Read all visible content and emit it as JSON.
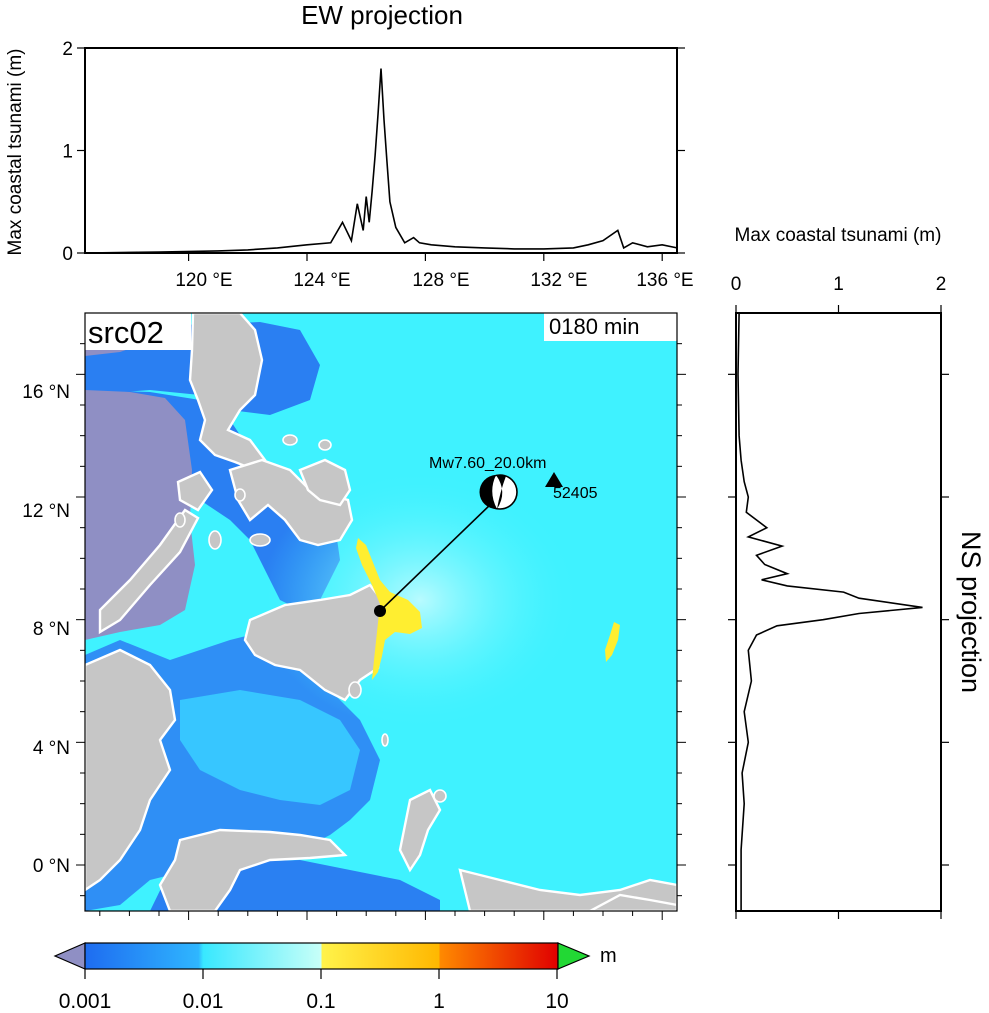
{
  "ew_panel": {
    "title": "EW projection",
    "ylabel": "Max coastal tsunami (m)",
    "x_ticks": [
      "120 °E",
      "124 °E",
      "128 °E",
      "132 °E",
      "136 °E"
    ]
  },
  "ns_panel": {
    "title": "NS projection",
    "xlabel": "Max coastal tsunami (m)"
  },
  "map": {
    "source_label": "src02",
    "time_label": "0180 min",
    "event_label": "Mw7.60_20.0km",
    "station_label": "52405",
    "y_ticks": [
      "16 °N",
      "12 °N",
      "8 °N",
      "4 °N",
      "0 °N"
    ]
  },
  "colorbar": {
    "unit": "m",
    "tick_labels": [
      "0.001",
      "0.01",
      "0.1",
      "1",
      "10"
    ],
    "colors": [
      "#1e6cf0",
      "#2fb6ff",
      "#3ff7ff",
      "#c8fff8",
      "#fff34a",
      "#ffb700",
      "#ff5a00",
      "#e00000"
    ],
    "under_color": "#8f8fc4",
    "over_color": "#22d834"
  },
  "colors": {
    "land": "#c6c6c6",
    "land_outline": "#ffffff",
    "mask": "#8f8fc4",
    "sea_deep": "#2a7ff2",
    "sea_mid": "#37d4ff",
    "sea_main": "#3ff2ff",
    "sea_light": "#7ff8ff",
    "high": "#ffee30"
  },
  "chart_data": [
    {
      "type": "line",
      "title": "EW projection",
      "xlabel": "",
      "ylabel": "Max coastal tsunami (m)",
      "xlim": [
        116.5,
        136.5
      ],
      "ylim": [
        0,
        2
      ],
      "y_ticks": [
        0,
        1,
        2
      ],
      "x": [
        116.5,
        119,
        121,
        122,
        123,
        124,
        124.8,
        125.2,
        125.5,
        125.7,
        125.9,
        126.0,
        126.1,
        126.2,
        126.3,
        126.4,
        126.5,
        126.6,
        126.7,
        126.8,
        127.0,
        127.3,
        127.6,
        127.8,
        128.2,
        129,
        130,
        131,
        132,
        133,
        133.5,
        134,
        134.5,
        134.7,
        135,
        135.5,
        136,
        136.5
      ],
      "y": [
        0.0,
        0.01,
        0.02,
        0.03,
        0.05,
        0.08,
        0.1,
        0.3,
        0.12,
        0.48,
        0.22,
        0.55,
        0.3,
        0.6,
        0.95,
        1.35,
        1.8,
        1.3,
        0.9,
        0.5,
        0.25,
        0.1,
        0.15,
        0.1,
        0.08,
        0.06,
        0.05,
        0.04,
        0.04,
        0.05,
        0.08,
        0.12,
        0.22,
        0.05,
        0.1,
        0.06,
        0.08,
        0.05
      ]
    },
    {
      "type": "line",
      "title": "NS projection",
      "xlabel": "Max coastal tsunami (m)",
      "ylabel": "",
      "xlim": [
        0,
        2
      ],
      "ylim": [
        -1.5,
        18
      ],
      "x_ticks": [
        0,
        1,
        2
      ],
      "x": [
        0.03,
        0.02,
        0.03,
        0.05,
        0.08,
        0.12,
        0.1,
        0.3,
        0.12,
        0.45,
        0.2,
        0.28,
        0.5,
        0.25,
        0.5,
        1.05,
        1.2,
        1.82,
        1.2,
        0.85,
        0.4,
        0.2,
        0.12,
        0.15,
        0.08,
        0.12,
        0.06,
        0.08,
        0.05,
        0.05
      ],
      "y": [
        18,
        16,
        14,
        13.2,
        12.5,
        12.0,
        11.5,
        11.0,
        10.7,
        10.4,
        10.1,
        9.8,
        9.5,
        9.3,
        9.1,
        8.9,
        8.7,
        8.4,
        8.2,
        8.0,
        7.8,
        7.5,
        7.0,
        6.0,
        5.0,
        4.0,
        3.0,
        2.0,
        0.5,
        -1.5
      ]
    }
  ]
}
